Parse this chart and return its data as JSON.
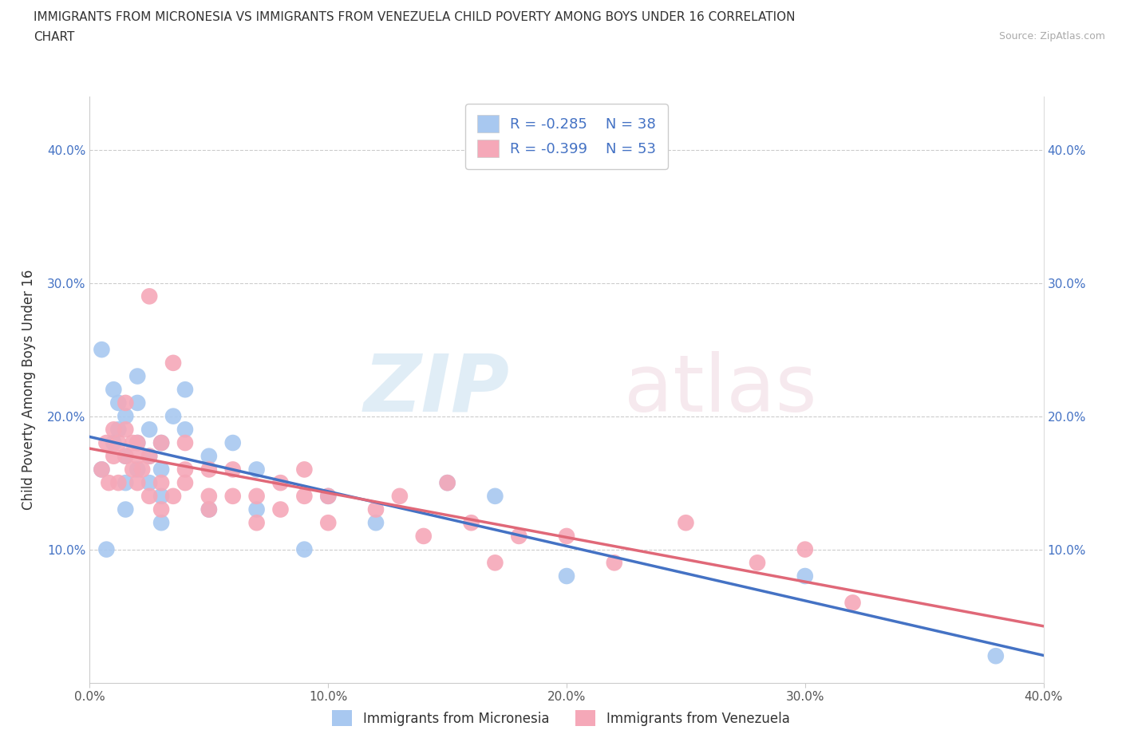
{
  "title_line1": "IMMIGRANTS FROM MICRONESIA VS IMMIGRANTS FROM VENEZUELA CHILD POVERTY AMONG BOYS UNDER 16 CORRELATION",
  "title_line2": "CHART",
  "source": "Source: ZipAtlas.com",
  "ylabel": "Child Poverty Among Boys Under 16",
  "xlim": [
    0.0,
    0.4
  ],
  "ylim": [
    0.0,
    0.44
  ],
  "xticks": [
    0.0,
    0.1,
    0.2,
    0.3,
    0.4
  ],
  "yticks": [
    0.1,
    0.2,
    0.3,
    0.4
  ],
  "xtick_labels": [
    "0.0%",
    "10.0%",
    "20.0%",
    "30.0%",
    "40.0%"
  ],
  "ytick_labels": [
    "10.0%",
    "20.0%",
    "30.0%",
    "40.0%"
  ],
  "micronesia_color": "#a8c8f0",
  "venezuela_color": "#f5a8b8",
  "micronesia_line_color": "#4472c4",
  "venezuela_line_color": "#e06878",
  "R_micronesia": -0.285,
  "N_micronesia": 38,
  "R_venezuela": -0.399,
  "N_venezuela": 53,
  "micronesia_x": [
    0.005,
    0.005,
    0.007,
    0.01,
    0.01,
    0.012,
    0.012,
    0.015,
    0.015,
    0.015,
    0.015,
    0.02,
    0.02,
    0.02,
    0.02,
    0.025,
    0.025,
    0.025,
    0.03,
    0.03,
    0.03,
    0.03,
    0.035,
    0.04,
    0.04,
    0.05,
    0.05,
    0.06,
    0.07,
    0.07,
    0.09,
    0.1,
    0.12,
    0.15,
    0.17,
    0.2,
    0.3,
    0.38
  ],
  "micronesia_y": [
    0.25,
    0.16,
    0.1,
    0.18,
    0.22,
    0.21,
    0.19,
    0.2,
    0.17,
    0.15,
    0.13,
    0.23,
    0.21,
    0.18,
    0.16,
    0.19,
    0.17,
    0.15,
    0.18,
    0.16,
    0.14,
    0.12,
    0.2,
    0.22,
    0.19,
    0.17,
    0.13,
    0.18,
    0.16,
    0.13,
    0.1,
    0.14,
    0.12,
    0.15,
    0.14,
    0.08,
    0.08,
    0.02
  ],
  "venezuela_x": [
    0.005,
    0.007,
    0.008,
    0.01,
    0.01,
    0.012,
    0.012,
    0.015,
    0.015,
    0.015,
    0.018,
    0.018,
    0.02,
    0.02,
    0.02,
    0.022,
    0.025,
    0.025,
    0.025,
    0.03,
    0.03,
    0.03,
    0.035,
    0.035,
    0.04,
    0.04,
    0.04,
    0.05,
    0.05,
    0.05,
    0.06,
    0.06,
    0.07,
    0.07,
    0.08,
    0.08,
    0.09,
    0.09,
    0.1,
    0.1,
    0.12,
    0.13,
    0.14,
    0.15,
    0.16,
    0.17,
    0.18,
    0.2,
    0.22,
    0.25,
    0.28,
    0.3,
    0.32
  ],
  "venezuela_y": [
    0.16,
    0.18,
    0.15,
    0.19,
    0.17,
    0.18,
    0.15,
    0.17,
    0.19,
    0.21,
    0.16,
    0.18,
    0.17,
    0.15,
    0.18,
    0.16,
    0.29,
    0.14,
    0.17,
    0.15,
    0.18,
    0.13,
    0.24,
    0.14,
    0.16,
    0.18,
    0.15,
    0.14,
    0.16,
    0.13,
    0.14,
    0.16,
    0.14,
    0.12,
    0.15,
    0.13,
    0.16,
    0.14,
    0.14,
    0.12,
    0.13,
    0.14,
    0.11,
    0.15,
    0.12,
    0.09,
    0.11,
    0.11,
    0.09,
    0.12,
    0.09,
    0.1,
    0.06
  ]
}
